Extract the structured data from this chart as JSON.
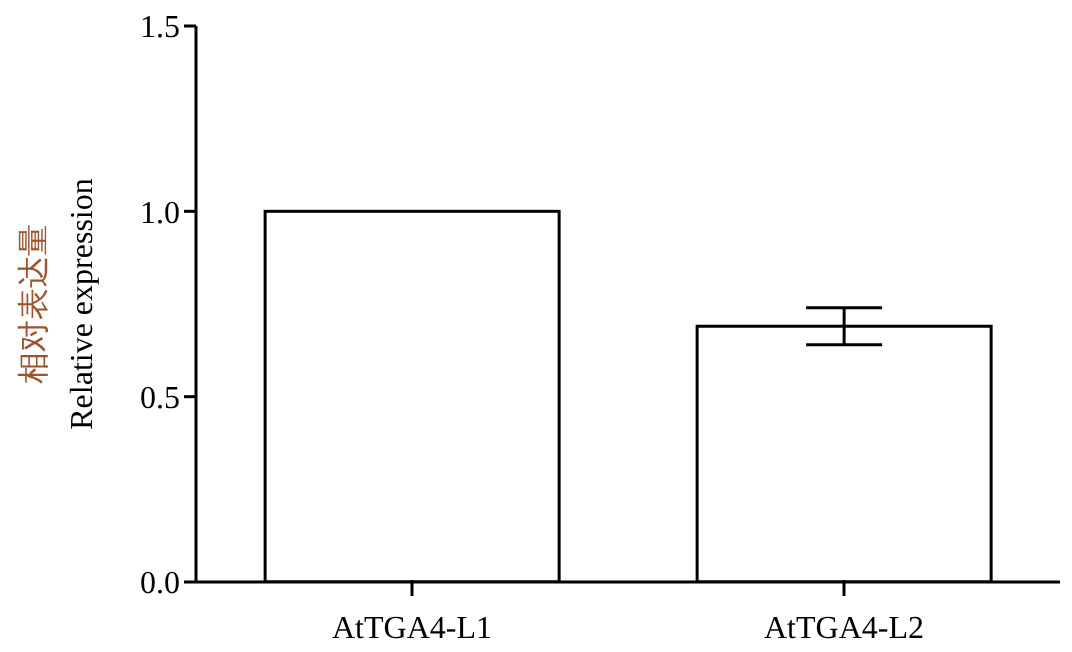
{
  "chart_data": {
    "type": "bar",
    "ylabel": "相对表达量\nRelative expression",
    "categories": [
      "AtTGA4-L1",
      "AtTGA4-L2"
    ],
    "values": [
      1.0,
      0.69
    ],
    "errors": [
      null,
      0.05
    ],
    "color": "#ffffff",
    "ylim": [
      0,
      1.5
    ],
    "yticks": [
      {
        "value": 0,
        "label": "0.0"
      },
      0.5,
      {
        "value": 1,
        "label": "1.0"
      },
      1.5
    ],
    "grid": false,
    "legend": false
  }
}
